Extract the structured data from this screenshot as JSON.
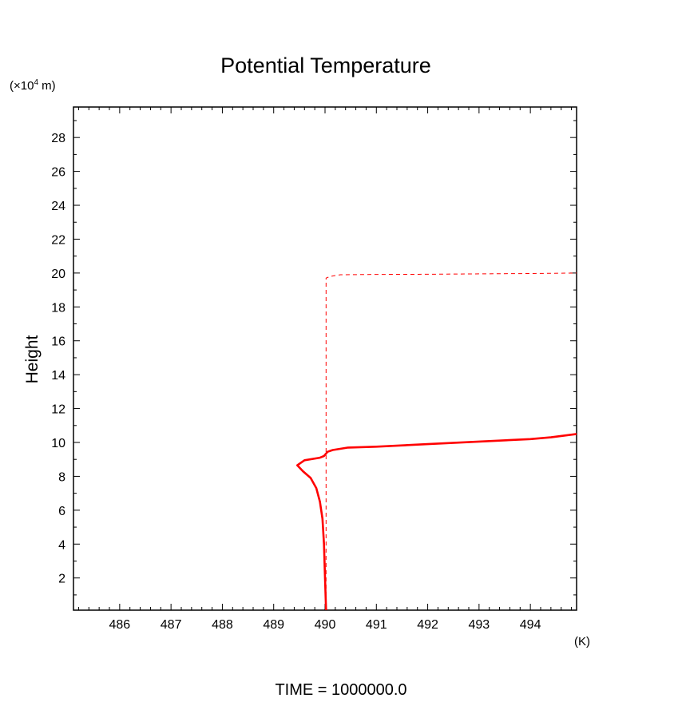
{
  "chart_data": {
    "type": "line",
    "title": "Potential Temperature",
    "ylabel": "Height",
    "y_unit_prefix": "(×10",
    "y_unit_exp": "4",
    "y_unit_suffix": " m)",
    "x_unit": "(K)",
    "footer": "TIME  =  1000000.0",
    "xlim": [
      485.1,
      494.9
    ],
    "ylim": [
      0.1,
      29.8
    ],
    "x_ticks": [
      486,
      487,
      488,
      489,
      490,
      491,
      492,
      493,
      494
    ],
    "x_tick_labels": [
      "486",
      "487",
      "488",
      "489",
      "490",
      "491",
      "492",
      "493",
      "494"
    ],
    "y_ticks": [
      2,
      4,
      6,
      8,
      10,
      12,
      14,
      16,
      18,
      20,
      22,
      24,
      26,
      28
    ],
    "y_tick_labels": [
      "2",
      "4",
      "6",
      "8",
      "10",
      "12",
      "14",
      "16",
      "18",
      "20",
      "22",
      "24",
      "26",
      "28"
    ],
    "grid": false,
    "series": [
      {
        "style": "solid",
        "color": "#ff0000",
        "x": [
          490.02,
          490.0,
          489.98,
          489.95,
          489.9,
          489.83,
          489.72,
          489.57,
          489.46,
          489.6,
          489.9,
          489.98,
          490.05,
          490.15,
          490.45,
          491.0,
          492.0,
          493.0,
          494.0,
          494.4,
          494.9
        ],
        "y": [
          0.1,
          2.0,
          4.0,
          5.5,
          6.5,
          7.3,
          7.9,
          8.3,
          8.65,
          8.95,
          9.1,
          9.2,
          9.45,
          9.55,
          9.7,
          9.75,
          9.9,
          10.05,
          10.2,
          10.3,
          10.5
        ]
      },
      {
        "style": "dashed",
        "color": "#ff0000",
        "x": [
          490.02,
          490.02,
          490.1,
          490.3,
          491.0,
          492.0,
          493.0,
          494.0,
          494.9
        ],
        "y": [
          0.1,
          19.7,
          19.8,
          19.9,
          19.92,
          19.93,
          19.95,
          19.97,
          20.0
        ]
      }
    ]
  }
}
